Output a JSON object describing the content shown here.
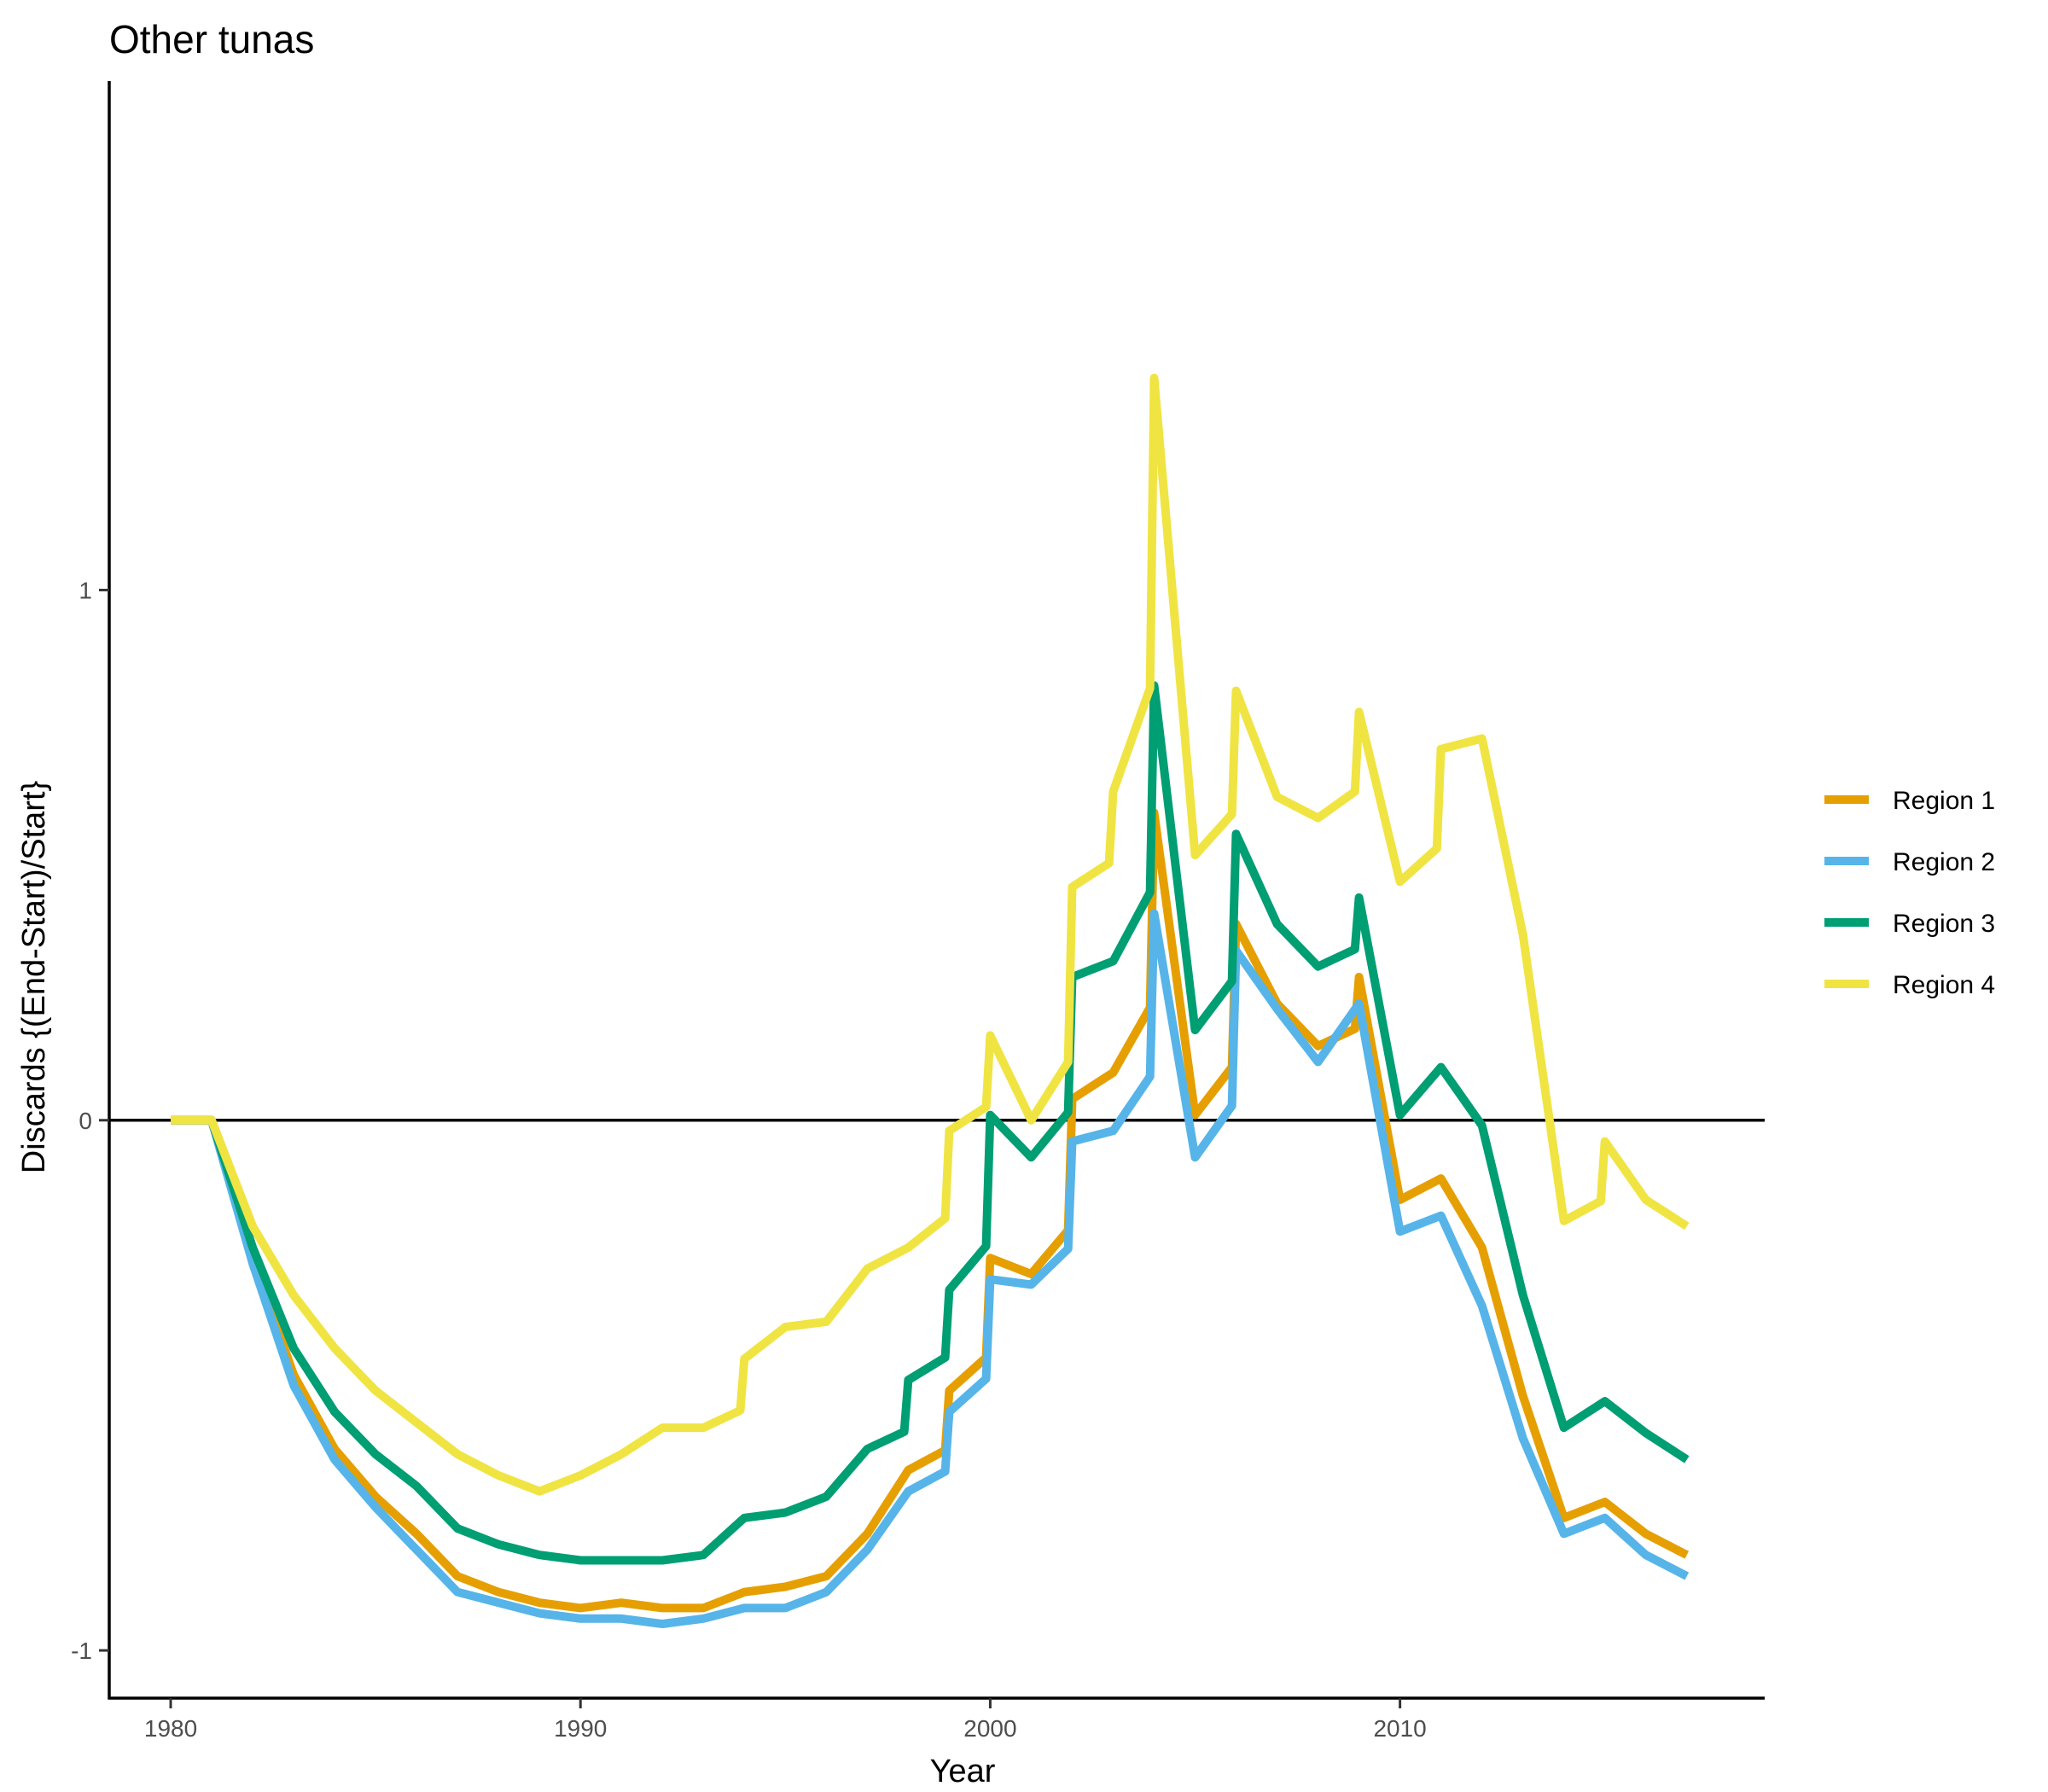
{
  "chart_data": {
    "type": "line",
    "title": "Other tunas",
    "xlabel": "Year",
    "ylabel": "Discards {(End-Start)/Start}",
    "xlim": [
      1978.5,
      2018.9
    ],
    "ylim": [
      -1.09,
      1.96
    ],
    "x_ticks": [
      1980,
      1990,
      2000,
      2010
    ],
    "x_tick_labels": [
      "1980",
      "1990",
      "2000",
      "2010"
    ],
    "y_ticks": [
      -1,
      0,
      1
    ],
    "y_tick_labels": [
      "-1",
      "0",
      "1"
    ],
    "hline": 0,
    "grid": false,
    "legend_position": "right",
    "x": [
      1980,
      1981,
      1982,
      1983,
      1984,
      1985,
      1986,
      1987,
      1988,
      1989,
      1990,
      1991,
      1992,
      1993,
      1994,
      1995,
      1996,
      1997,
      1998,
      1999,
      2000,
      2001,
      2002,
      2003,
      2004,
      2005,
      2006,
      2007,
      2008,
      2009,
      2010,
      2011,
      2012,
      2013,
      2014,
      2015,
      2016,
      2017
    ],
    "series": [
      {
        "name": "Region 1",
        "color": "#E69F00",
        "values": [
          0,
          0,
          -0.26,
          -0.48,
          -0.62,
          -0.71,
          -0.78,
          -0.86,
          -0.89,
          -0.91,
          -0.92,
          -0.91,
          -0.92,
          -0.92,
          -0.89,
          -0.88,
          -0.86,
          -0.78,
          -0.66,
          -0.51,
          -0.26,
          -0.29,
          0.04,
          0.09,
          0.58,
          0.01,
          0.37,
          0.22,
          0.14,
          0.27,
          -0.15,
          -0.11,
          -0.24,
          -0.52,
          -0.75,
          -0.72,
          -0.78,
          -0.82
        ]
      },
      {
        "name": "Region 2",
        "color": "#56B4E9",
        "values": [
          0,
          0,
          -0.27,
          -0.5,
          -0.64,
          -0.73,
          -0.81,
          -0.89,
          -0.91,
          -0.93,
          -0.94,
          -0.94,
          -0.95,
          -0.94,
          -0.92,
          -0.92,
          -0.89,
          -0.81,
          -0.7,
          -0.55,
          -0.3,
          -0.31,
          -0.04,
          -0.02,
          0.39,
          -0.07,
          0.32,
          0.21,
          0.11,
          0.22,
          -0.21,
          -0.18,
          -0.35,
          -0.6,
          -0.78,
          -0.75,
          -0.82,
          -0.86
        ]
      },
      {
        "name": "Region 3",
        "color": "#009E73",
        "values": [
          0,
          0,
          -0.24,
          -0.43,
          -0.55,
          -0.63,
          -0.69,
          -0.77,
          -0.8,
          -0.82,
          -0.83,
          -0.83,
          -0.83,
          -0.82,
          -0.75,
          -0.74,
          -0.71,
          -0.62,
          -0.49,
          -0.32,
          0.01,
          -0.07,
          0.27,
          0.3,
          0.82,
          0.17,
          0.54,
          0.37,
          0.29,
          0.42,
          0.01,
          0.1,
          -0.01,
          -0.33,
          -0.58,
          -0.53,
          -0.59,
          -0.64
        ]
      },
      {
        "name": "Region 4",
        "color": "#F0E442",
        "values": [
          0,
          0,
          -0.2,
          -0.33,
          -0.43,
          -0.51,
          -0.57,
          -0.63,
          -0.67,
          -0.7,
          -0.67,
          -0.63,
          -0.58,
          -0.58,
          -0.45,
          -0.39,
          -0.38,
          -0.28,
          -0.24,
          -0.02,
          0.16,
          0.0,
          0.44,
          0.62,
          1.4,
          0.5,
          0.81,
          0.61,
          0.57,
          0.77,
          0.45,
          0.7,
          0.72,
          0.35,
          -0.19,
          -0.04,
          -0.15,
          -0.2
        ]
      }
    ]
  }
}
